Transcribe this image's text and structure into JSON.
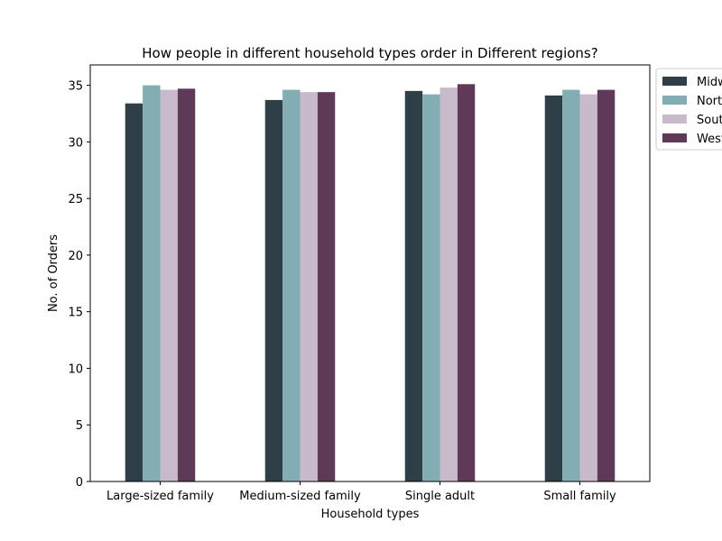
{
  "chart_data": {
    "type": "bar",
    "title": "How people in different household types order in Different regions?",
    "xlabel": "Household types",
    "ylabel": "No. of Orders",
    "categories": [
      "Large-sized family",
      "Medium-sized family",
      "Single adult",
      "Small family"
    ],
    "ylim": [
      0,
      36.8
    ],
    "yticks": [
      0,
      5,
      10,
      15,
      20,
      25,
      30,
      35
    ],
    "grid": false,
    "legend_position": "top-right",
    "series": [
      {
        "name": "Midwest",
        "color": "#2e3f47",
        "values": [
          33.4,
          33.7,
          34.5,
          34.1
        ]
      },
      {
        "name": "Northeast",
        "color": "#82adb3",
        "values": [
          35.0,
          34.6,
          34.2,
          34.6
        ]
      },
      {
        "name": "South",
        "color": "#c8b9cb",
        "values": [
          34.6,
          34.4,
          34.8,
          34.2
        ]
      },
      {
        "name": "West",
        "color": "#5e3a58",
        "values": [
          34.7,
          34.4,
          35.1,
          34.6
        ]
      }
    ]
  }
}
